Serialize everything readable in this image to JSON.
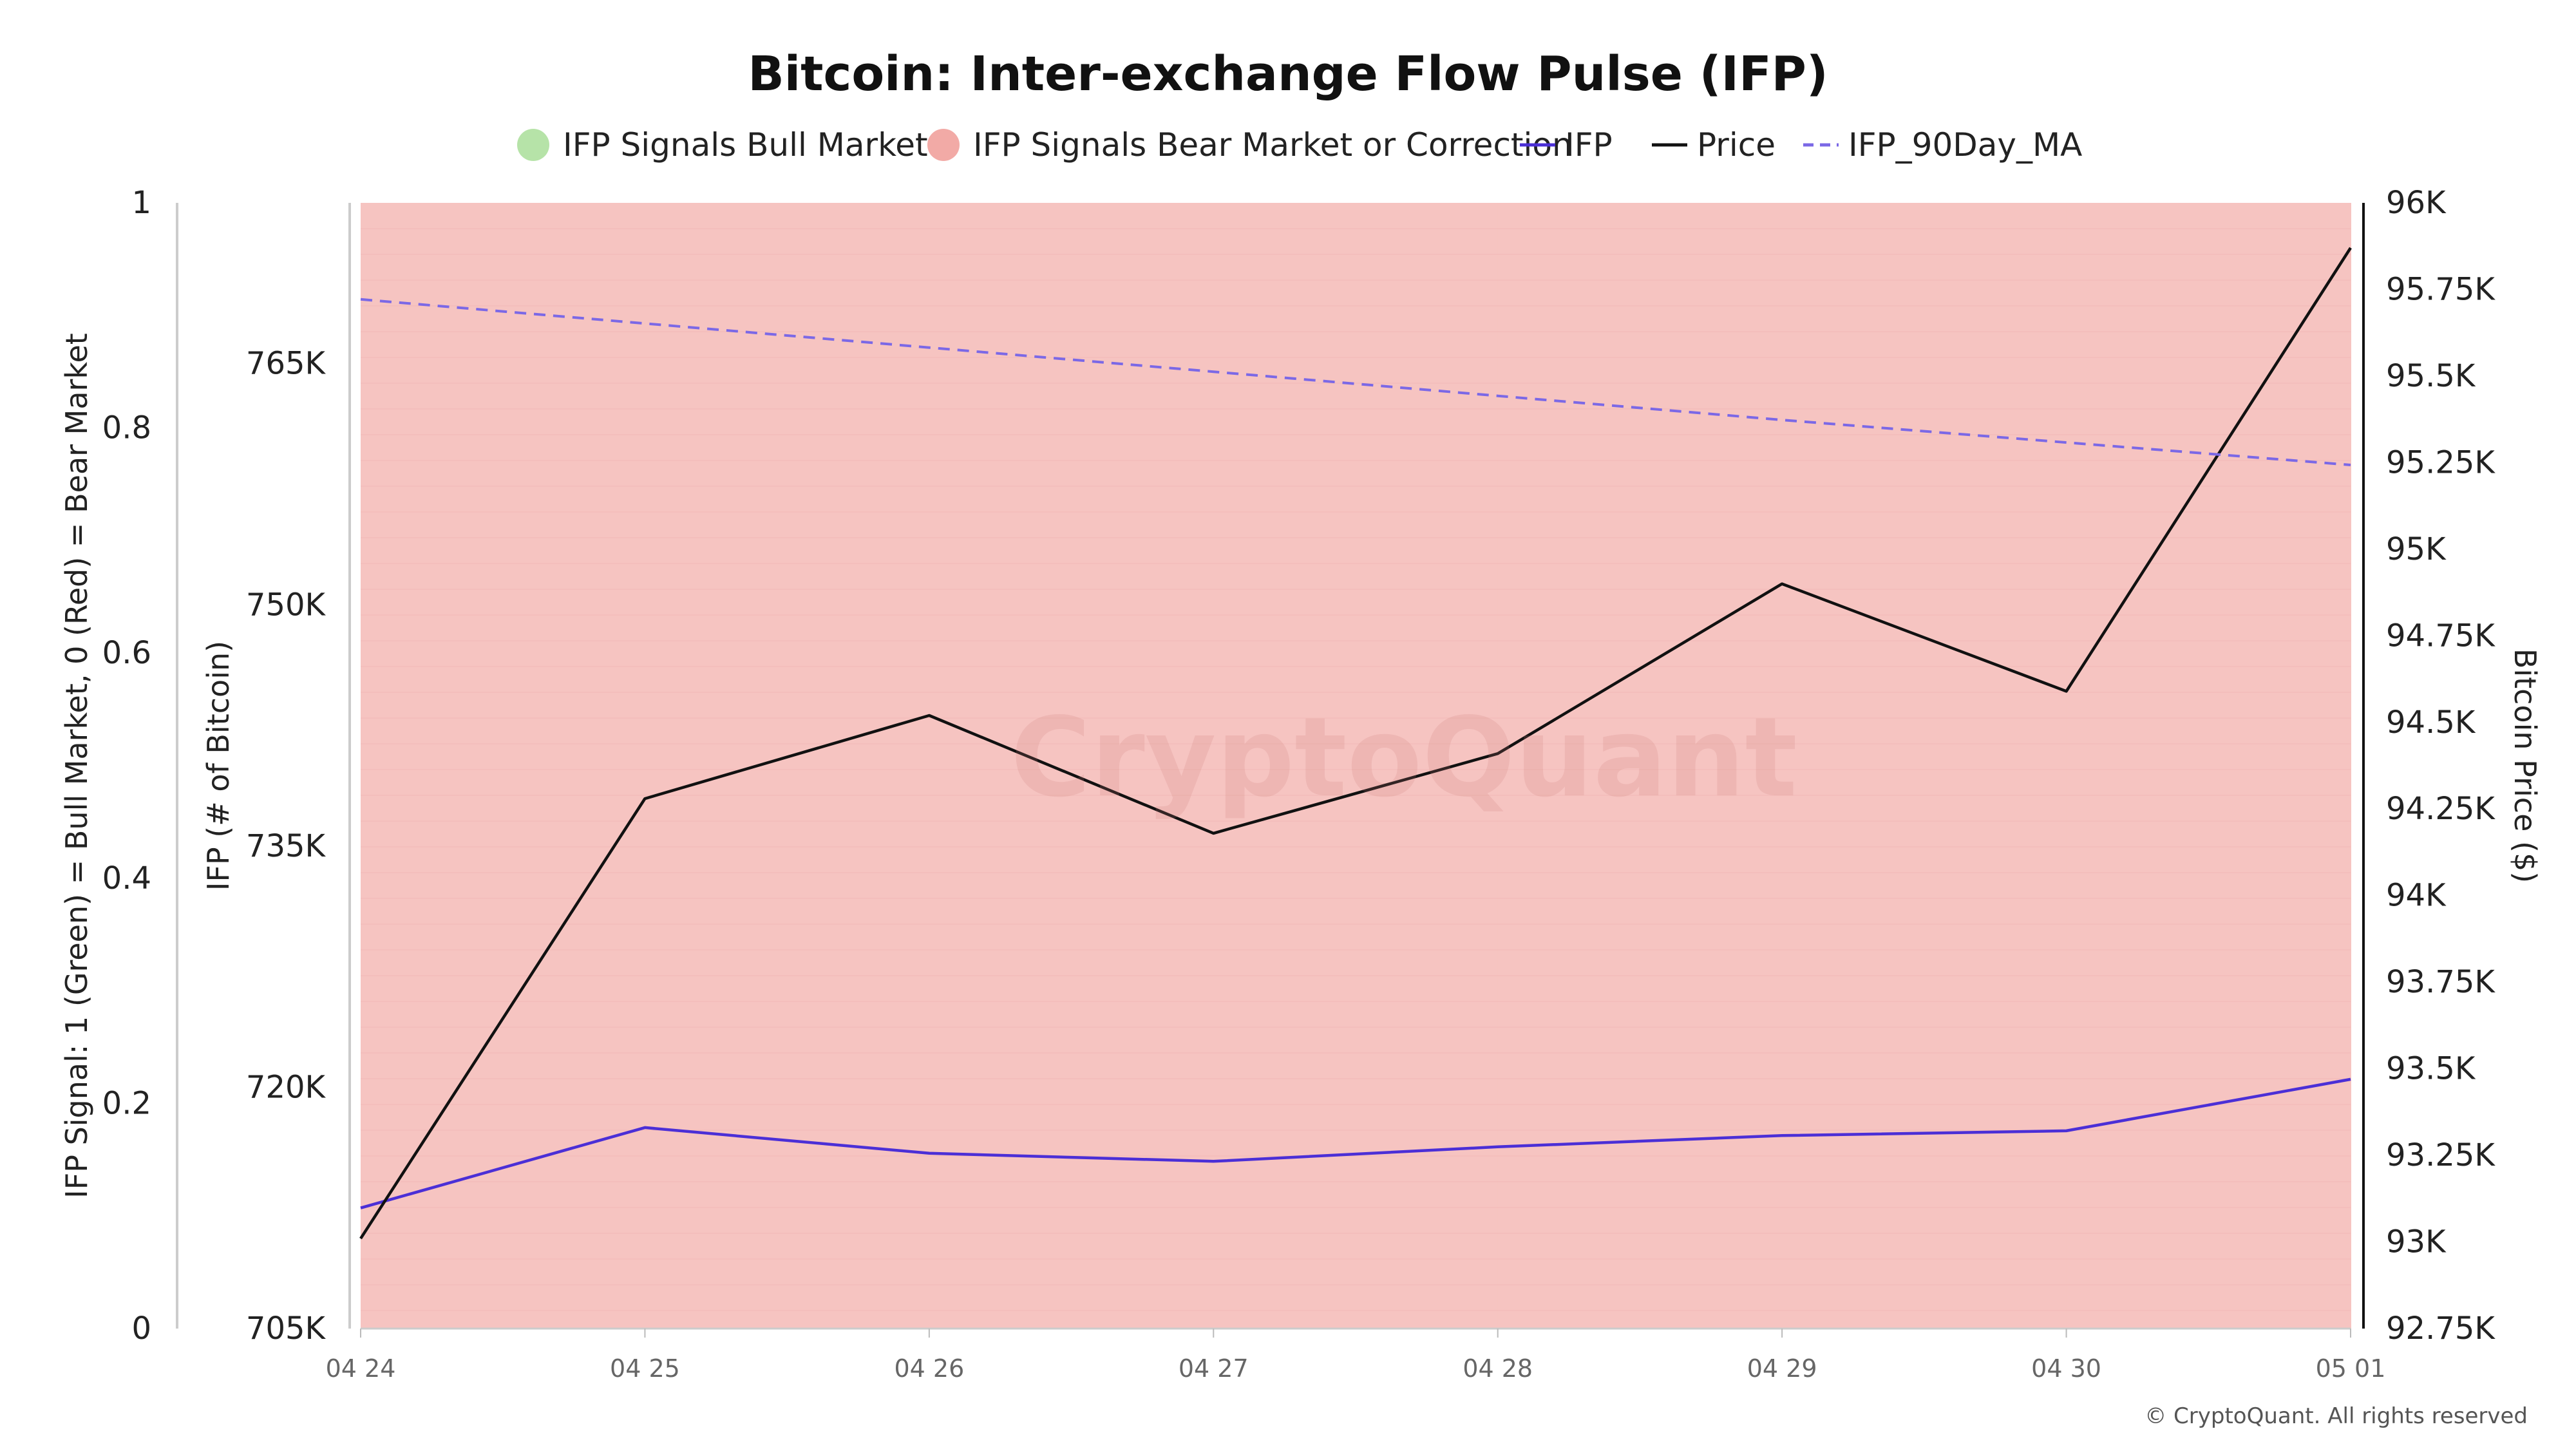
{
  "chart_data": {
    "type": "line",
    "title": "Bitcoin: Inter-exchange Flow Pulse (IFP)",
    "x": [
      "04 24",
      "04 25",
      "04 26",
      "04 27",
      "04 28",
      "04 29",
      "04 30",
      "05 01"
    ],
    "legend": [
      {
        "name": "IFP Signals Bull Market",
        "symbol": "circle",
        "color": "#b6e3a8"
      },
      {
        "name": "IFP Signals Bear Market or Correction",
        "symbol": "circle",
        "color": "#f2aaa6"
      },
      {
        "name": "IFP",
        "symbol": "line",
        "color": "#4b2fd6"
      },
      {
        "name": "Price",
        "symbol": "line",
        "color": "#111111"
      },
      {
        "name": "IFP_90Day_MA",
        "symbol": "dashed-line",
        "color": "#7b68e6"
      }
    ],
    "series": [
      {
        "name": "IFP",
        "axis": "ifp",
        "color": "#4b2fd6",
        "values": [
          712500,
          717500,
          715900,
          715400,
          716300,
          717000,
          717300,
          720500
        ]
      },
      {
        "name": "Price",
        "axis": "price",
        "color": "#111111",
        "values": [
          93010,
          94280,
          94520,
          94180,
          94410,
          94900,
          94590,
          95870
        ]
      },
      {
        "name": "IFP_90Day_MA",
        "axis": "ifp",
        "color": "#7b68e6",
        "dashed": true,
        "values": [
          769000,
          767500,
          766000,
          764500,
          763000,
          761500,
          760100,
          758700
        ]
      }
    ],
    "signal": {
      "values": [
        0,
        0,
        0,
        0,
        0,
        0,
        0,
        0
      ],
      "bull_color": "#c8ecbf",
      "bear_color": "#f6c4c1"
    },
    "axes": {
      "signal": {
        "label": "IFP Signal: 1 (Green) = Bull Market, 0 (Red) = Bear Market",
        "ylim": [
          0,
          1
        ],
        "ticks": [
          "0",
          "0.2",
          "0.4",
          "0.6",
          "0.8",
          "1"
        ],
        "tick_values": [
          0,
          0.2,
          0.4,
          0.6,
          0.8,
          1
        ]
      },
      "ifp": {
        "label": "IFP (# of Bitcoin)",
        "ylim": [
          705000,
          775000
        ],
        "ticks": [
          "705K",
          "720K",
          "735K",
          "750K",
          "765K"
        ],
        "tick_values": [
          705000,
          720000,
          735000,
          750000,
          765000
        ]
      },
      "price": {
        "label": "Bitcoin Price ($)",
        "ylim": [
          92750,
          96000
        ],
        "ticks": [
          "92.75K",
          "93K",
          "93.25K",
          "93.5K",
          "93.75K",
          "94K",
          "94.25K",
          "94.5K",
          "94.75K",
          "95K",
          "95.25K",
          "95.5K",
          "95.75K",
          "96K"
        ],
        "tick_values": [
          92750,
          93000,
          93250,
          93500,
          93750,
          94000,
          94250,
          94500,
          94750,
          95000,
          95250,
          95500,
          95750,
          96000
        ]
      }
    },
    "watermark": "CryptoQuant",
    "copyright": "© CryptoQuant. All rights reserved",
    "grid": false
  }
}
